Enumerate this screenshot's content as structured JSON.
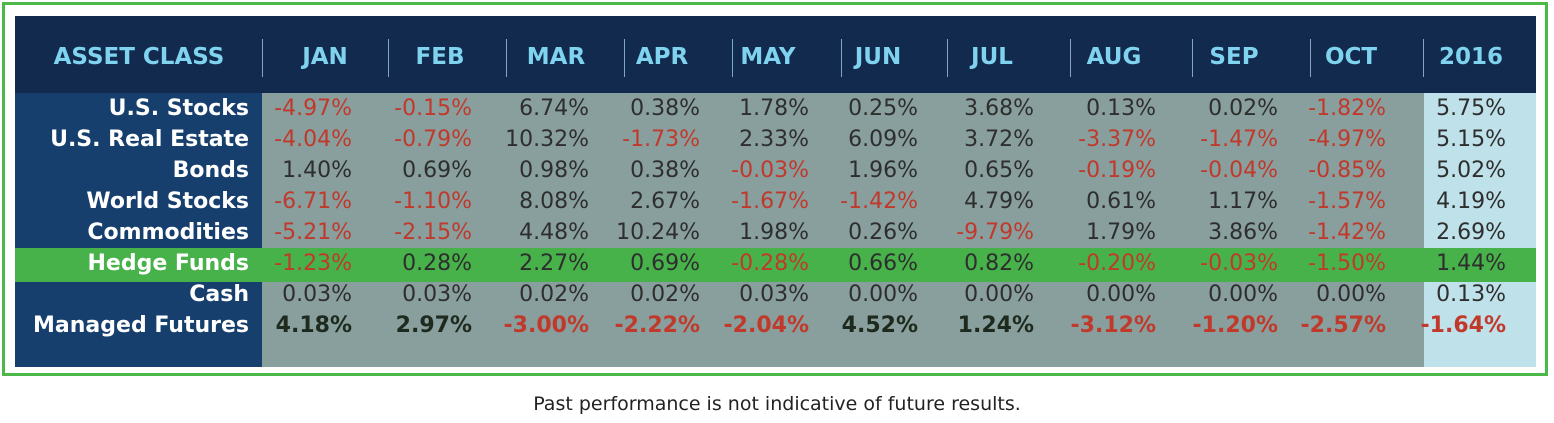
{
  "header": {
    "asset_class": "ASSET CLASS",
    "columns": [
      "JAN",
      "FEB",
      "MAR",
      "APR",
      "MAY",
      "JUN",
      "JUL",
      "AUG",
      "SEP",
      "OCT",
      "2016"
    ]
  },
  "footnote": "Past performance is not indicative of future results.",
  "colors": {
    "header_bg": "#112a4e",
    "label_bg": "#173f6d",
    "body_bg": "#889f9e",
    "year_bg": "#bfe1ea",
    "highlight_row": "#47b24a",
    "negative_text": "#c0392b",
    "header_text": "#7fd3ee",
    "frame": "#4cb84a"
  },
  "chart_data": {
    "type": "table",
    "columns": [
      "JAN",
      "FEB",
      "MAR",
      "APR",
      "MAY",
      "JUN",
      "JUL",
      "AUG",
      "SEP",
      "OCT",
      "2016"
    ],
    "rows": [
      {
        "label": "U.S. Stocks",
        "values": [
          "-4.97%",
          "-0.15%",
          "6.74%",
          "0.38%",
          "1.78%",
          "0.25%",
          "3.68%",
          "0.13%",
          "0.02%",
          "-1.82%",
          "5.75%"
        ]
      },
      {
        "label": "U.S. Real Estate",
        "values": [
          "-4.04%",
          "-0.79%",
          "10.32%",
          "-1.73%",
          "2.33%",
          "6.09%",
          "3.72%",
          "-3.37%",
          "-1.47%",
          "-4.97%",
          "5.15%"
        ]
      },
      {
        "label": "Bonds",
        "values": [
          "1.40%",
          "0.69%",
          "0.98%",
          "0.38%",
          "-0.03%",
          "1.96%",
          "0.65%",
          "-0.19%",
          "-0.04%",
          "-0.85%",
          "5.02%"
        ]
      },
      {
        "label": "World Stocks",
        "values": [
          "-6.71%",
          "-1.10%",
          "8.08%",
          "2.67%",
          "-1.67%",
          "-1.42%",
          "4.79%",
          "0.61%",
          "1.17%",
          "-1.57%",
          "4.19%"
        ]
      },
      {
        "label": "Commodities",
        "values": [
          "-5.21%",
          "-2.15%",
          "4.48%",
          "10.24%",
          "1.98%",
          "0.26%",
          "-9.79%",
          "1.79%",
          "3.86%",
          "-1.42%",
          "2.69%"
        ]
      },
      {
        "label": "Hedge Funds",
        "values": [
          "-1.23%",
          "0.28%",
          "2.27%",
          "0.69%",
          "-0.28%",
          "0.66%",
          "0.82%",
          "-0.20%",
          "-0.03%",
          "-1.50%",
          "1.44%"
        ]
      },
      {
        "label": "Cash",
        "values": [
          "0.03%",
          "0.03%",
          "0.02%",
          "0.02%",
          "0.03%",
          "0.00%",
          "0.00%",
          "0.00%",
          "0.00%",
          "0.00%",
          "0.13%"
        ]
      },
      {
        "label": "Managed Futures",
        "values": [
          "4.18%",
          "2.97%",
          "-3.00%",
          "-2.22%",
          "-2.04%",
          "4.52%",
          "1.24%",
          "-3.12%",
          "-1.20%",
          "-2.57%",
          "-1.64%"
        ]
      }
    ]
  }
}
